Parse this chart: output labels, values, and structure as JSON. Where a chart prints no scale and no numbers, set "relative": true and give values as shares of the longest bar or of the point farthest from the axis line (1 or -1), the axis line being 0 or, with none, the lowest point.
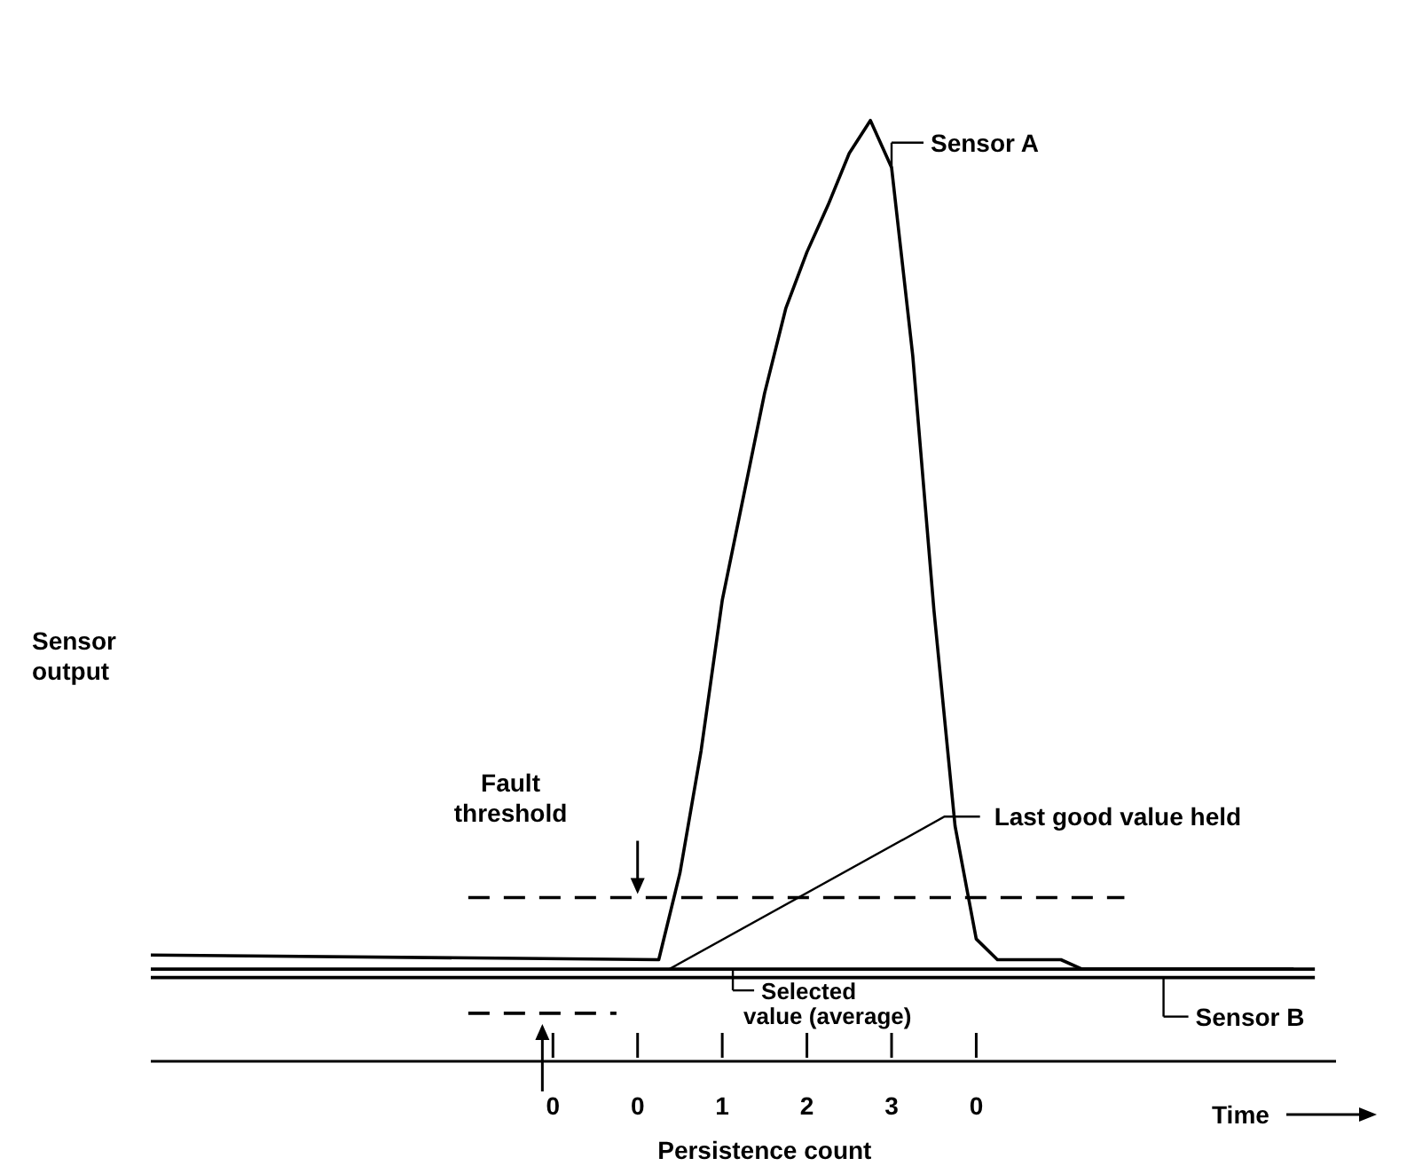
{
  "chart_data": {
    "type": "line",
    "relative": true,
    "xlabel": "Persistence count",
    "ylabel": "Sensor output",
    "marker": "none",
    "legend": "right",
    "categories": [
      null,
      null,
      null,
      null,
      null,
      null,
      null,
      null,
      null,
      null,
      null,
      null,
      null,
      null,
      null,
      null,
      null,
      null,
      null,
      "0",
      null,
      null,
      null,
      "0",
      null,
      null,
      null,
      "1",
      null,
      null,
      null,
      "2",
      null,
      null,
      null,
      "3",
      null,
      null,
      null,
      "0",
      null,
      null,
      null,
      null,
      null,
      null,
      null,
      null,
      null,
      null,
      null,
      null,
      null,
      null,
      null,
      null,
      null
    ],
    "series": [
      {
        "name": "Sensor A",
        "color": "#000000",
        "values": [
          0.113,
          null,
          null,
          null,
          null,
          null,
          null,
          null,
          null,
          null,
          null,
          null,
          null,
          null,
          null,
          null,
          null,
          null,
          null,
          null,
          null,
          null,
          null,
          null,
          0.108,
          0.2,
          0.33,
          0.49,
          0.6,
          0.71,
          0.8,
          0.86,
          0.91,
          0.965,
          1.0,
          0.95,
          0.75,
          0.48,
          0.25,
          0.13,
          0.108,
          null,
          null,
          0.108,
          0.098,
          null,
          null,
          null,
          null,
          null,
          null,
          null,
          null,
          null,
          0.098,
          null,
          null
        ]
      },
      {
        "name": "Selected value (average)",
        "color": "#000000",
        "values": [
          0.098,
          null,
          null,
          null,
          null,
          null,
          null,
          null,
          null,
          null,
          null,
          null,
          null,
          null,
          null,
          null,
          null,
          null,
          null,
          null,
          null,
          null,
          null,
          null,
          null,
          null,
          null,
          null,
          null,
          null,
          null,
          null,
          null,
          null,
          null,
          null,
          null,
          null,
          null,
          null,
          null,
          null,
          null,
          null,
          null,
          null,
          null,
          null,
          null,
          null,
          null,
          null,
          null,
          null,
          null,
          0.098,
          null
        ]
      },
      {
        "name": "Sensor B",
        "color": "#000000",
        "values": [
          0.089,
          null,
          null,
          null,
          null,
          null,
          null,
          null,
          null,
          null,
          null,
          null,
          null,
          null,
          null,
          null,
          null,
          null,
          null,
          null,
          null,
          null,
          null,
          null,
          null,
          null,
          null,
          null,
          null,
          null,
          null,
          null,
          null,
          null,
          null,
          null,
          null,
          null,
          null,
          null,
          null,
          null,
          null,
          null,
          null,
          null,
          null,
          null,
          null,
          null,
          null,
          null,
          null,
          null,
          null,
          0.089,
          null
        ]
      },
      {
        "color": "#000000",
        "line_style": "dashed",
        "values": [
          null,
          null,
          null,
          null,
          null,
          null,
          null,
          null,
          null,
          null,
          null,
          null,
          null,
          null,
          null,
          0.174,
          null,
          null,
          null,
          null,
          null,
          null,
          null,
          null,
          null,
          null,
          null,
          null,
          null,
          null,
          null,
          null,
          null,
          null,
          null,
          null,
          null,
          null,
          null,
          null,
          null,
          null,
          null,
          null,
          null,
          null,
          0.174,
          null,
          null,
          null,
          null,
          null,
          null,
          null,
          null,
          null,
          null
        ]
      },
      {
        "color": "#000000",
        "line_style": "dashed",
        "values": [
          null,
          null,
          null,
          null,
          null,
          null,
          null,
          null,
          null,
          null,
          null,
          null,
          null,
          null,
          null,
          0.051,
          null,
          null,
          null,
          null,
          null,
          null,
          0.051,
          null,
          null,
          null,
          null,
          null,
          null,
          null,
          null,
          null,
          null,
          null,
          null,
          null,
          null,
          null,
          null,
          null,
          null,
          null,
          null,
          null,
          null,
          null,
          null,
          null,
          null,
          null,
          null,
          null,
          null,
          null,
          null,
          null,
          null
        ]
      }
    ],
    "annotations": [
      "Fault threshold",
      "Last good value held",
      "Time"
    ]
  }
}
